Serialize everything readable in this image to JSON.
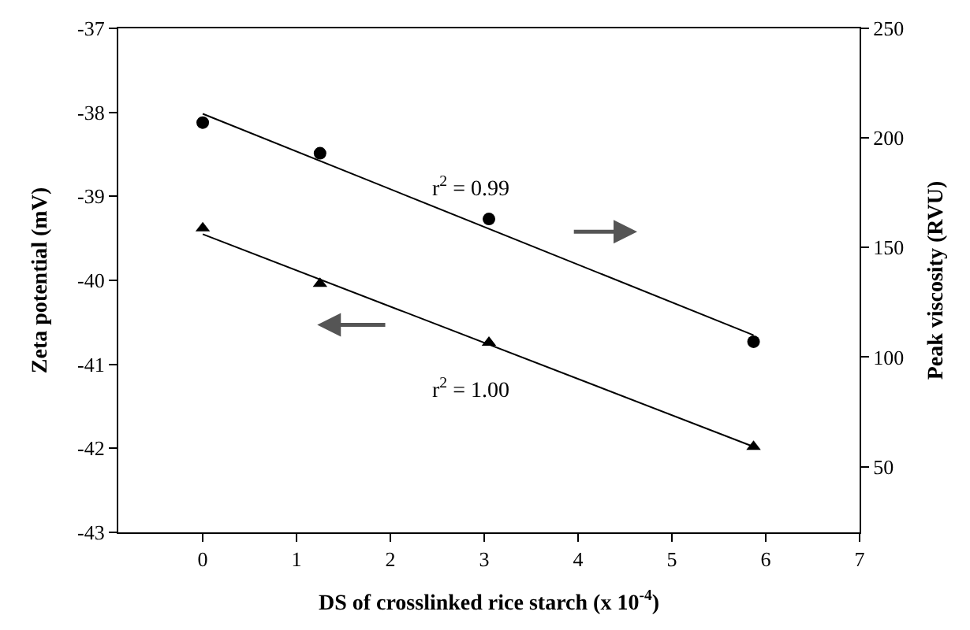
{
  "chart_data": {
    "type": "scatter",
    "xlabel": "DS of crosslinked rice starch (x 10$^{-4}$)",
    "ylabel": "Zeta potential (mV)",
    "y2label": "Peak viscosity (RVU)",
    "xlim": [
      -0.9,
      7
    ],
    "xticks": [
      0,
      1,
      2,
      3,
      4,
      5,
      6,
      7
    ],
    "ylim": [
      -43,
      -37
    ],
    "yticks": [
      -43,
      -42,
      -41,
      -40,
      -39,
      -38,
      -37
    ],
    "y2lim": [
      20,
      250
    ],
    "y2ticks": [
      50,
      100,
      150,
      200,
      250
    ],
    "legend": false,
    "series": [
      {
        "marker": "circle",
        "axis": "y2",
        "color": "#000000",
        "x": [
          0,
          1.25,
          3.05,
          5.87
        ],
        "values": [
          207,
          193,
          163,
          107
        ]
      },
      {
        "type": "line",
        "marker": "none",
        "axis": "y2",
        "color": "#000000",
        "x": [
          0,
          5.87
        ],
        "values": [
          211,
          110
        ]
      },
      {
        "marker": "triangle",
        "color": "#000000",
        "x": [
          0,
          1.25,
          3.05,
          5.87
        ],
        "values": [
          -39.38,
          -40.04,
          -40.74,
          -41.98
        ]
      },
      {
        "type": "line",
        "marker": "none",
        "color": "#000000",
        "x": [
          0,
          5.87
        ],
        "values": [
          -39.45,
          -41.98
        ]
      }
    ],
    "annotations": [
      "r$^{2}$ = 0.99",
      "r$^{2}$ = 1.00"
    ]
  }
}
